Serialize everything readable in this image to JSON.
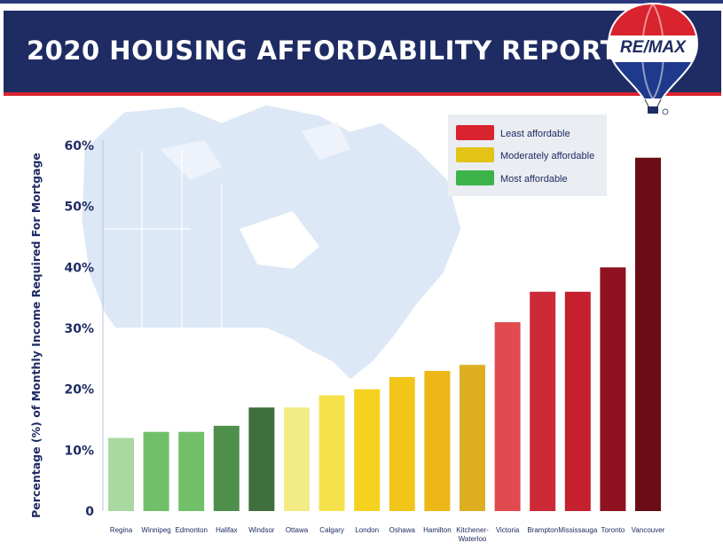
{
  "header": {
    "title": "2020 HOUSING AFFORDABILITY REPORT",
    "logo_text": "RE/MAX"
  },
  "colors": {
    "header_bg": "#1f2c63",
    "header_accent": "#d9232e",
    "axis_text": "#1f2c63",
    "map_fill": "#dce8f6"
  },
  "chart_data": {
    "type": "bar",
    "title": "",
    "xlabel": "",
    "ylabel": "Percentage (%) of Monthly Income Required For Mortgage",
    "ylim": [
      0,
      60
    ],
    "yticks": [
      {
        "value": 0,
        "label": "0"
      },
      {
        "value": 10,
        "label": "10%"
      },
      {
        "value": 20,
        "label": "20%"
      },
      {
        "value": 30,
        "label": "30%"
      },
      {
        "value": 40,
        "label": "40%"
      },
      {
        "value": 50,
        "label": "50%"
      },
      {
        "value": 60,
        "label": "60%"
      }
    ],
    "grid": false,
    "legend_position": "top-right",
    "legend": [
      {
        "label": "Least affordable",
        "color": "#d9232e"
      },
      {
        "label": "Moderately affordable",
        "color": "#e2c316"
      },
      {
        "label": "Most affordable",
        "color": "#3db449"
      }
    ],
    "categories": [
      "Regina",
      "Winnipeg",
      "Edmonton",
      "Halifax",
      "Windsor",
      "Ottawa",
      "Calgary",
      "London",
      "Oshawa",
      "Hamilton",
      "Kitchener-Waterloo",
      "Victoria",
      "Brampton",
      "Mississauga",
      "Toronto",
      "Vancouver"
    ],
    "category_labels": [
      [
        "Regina"
      ],
      [
        "Winnipeg"
      ],
      [
        "Edmonton"
      ],
      [
        "Halifax"
      ],
      [
        "Windsor"
      ],
      [
        "Ottawa"
      ],
      [
        "Calgary"
      ],
      [
        "London"
      ],
      [
        "Oshawa"
      ],
      [
        "Hamilton"
      ],
      [
        "Kitchener-",
        "Waterloo"
      ],
      [
        "Victoria"
      ],
      [
        "Brampton"
      ],
      [
        "Mississauga"
      ],
      [
        "Toronto"
      ],
      [
        "Vancouver"
      ]
    ],
    "values": [
      12,
      13,
      13,
      14,
      17,
      17,
      19,
      20,
      22,
      23,
      24,
      31,
      36,
      36,
      40,
      58
    ],
    "bar_colors": [
      "#a9d8a0",
      "#72bf6a",
      "#72bf6a",
      "#4f8f4c",
      "#3f6f3c",
      "#f3ec86",
      "#f5e24a",
      "#f4d21f",
      "#f2c51a",
      "#eeb616",
      "#deae22",
      "#e14a4f",
      "#cc2a37",
      "#c4202e",
      "#8e1220",
      "#6a0d16"
    ]
  }
}
